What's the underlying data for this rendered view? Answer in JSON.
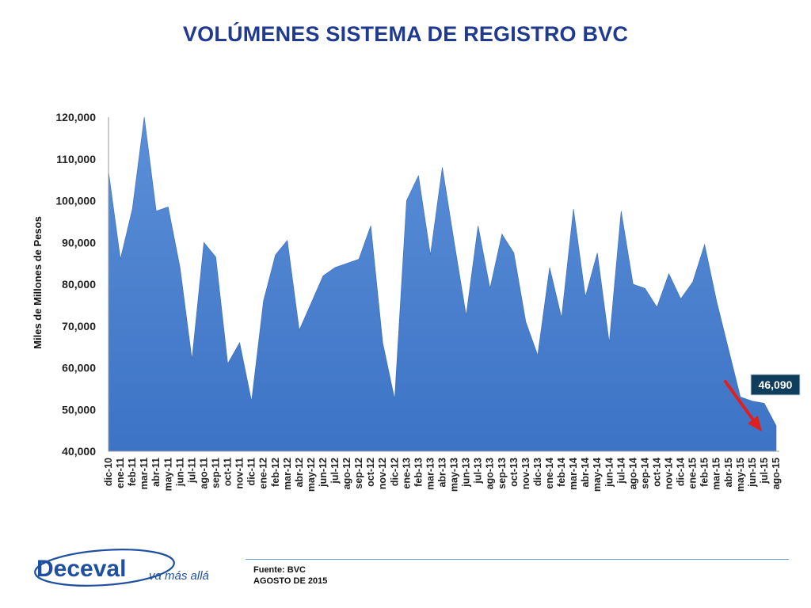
{
  "slide": {
    "title": "VOLÚMENES SISTEMA DE REGISTRO BVC",
    "source_line1": "Fuente: BVC",
    "source_line2": "AGOSTO DE 2015",
    "logo_text": "Deceval",
    "logo_tagline": "va más allá",
    "callout_value": "46,090"
  },
  "colors": {
    "title": "#1f3a8f",
    "area_fill_top": "#5b8fd8",
    "area_fill_bottom": "#3d73c5",
    "callout_bg": "#0f3d5c",
    "arrow": "#e02020",
    "brand": "#1f4fa0"
  },
  "chart_data": {
    "type": "area",
    "title": "VOLÚMENES SISTEMA DE REGISTRO BVC",
    "xlabel": "",
    "ylabel": "Miles de Millones de Pesos",
    "ylim": [
      40000,
      120000
    ],
    "yticks": [
      "40,000",
      "50,000",
      "60,000",
      "70,000",
      "80,000",
      "90,000",
      "100,000",
      "110,000",
      "120,000"
    ],
    "grid": false,
    "legend": "none",
    "categories": [
      "dic-10",
      "ene-11",
      "feb-11",
      "mar-11",
      "abr-11",
      "may-11",
      "jun-11",
      "jul-11",
      "ago-11",
      "sep-11",
      "oct-11",
      "nov-11",
      "dic-11",
      "ene-12",
      "feb-12",
      "mar-12",
      "abr-12",
      "may-12",
      "jun-12",
      "jul-12",
      "ago-12",
      "sep-12",
      "oct-12",
      "nov-12",
      "dic-12",
      "ene-13",
      "feb-13",
      "mar-13",
      "abr-13",
      "may-13",
      "jun-13",
      "jul-13",
      "ago-13",
      "sep-13",
      "oct-13",
      "nov-13",
      "dic-13",
      "ene-14",
      "feb-14",
      "mar-14",
      "abr-14",
      "may-14",
      "jun-14",
      "jul-14",
      "ago-14",
      "sep-14",
      "oct-14",
      "nov-14",
      "dic-14",
      "ene-15",
      "feb-15",
      "mar-15",
      "abr-15",
      "may-15",
      "jun-15",
      "jul-15",
      "ago-15"
    ],
    "series": [
      {
        "values": [
          107000,
          86000,
          98000,
          120000,
          97500,
          98500,
          84000,
          62000,
          90000,
          86500,
          61000,
          66000,
          52000,
          76000,
          87000,
          90500,
          69000,
          75500,
          82000,
          84000,
          85000,
          86000,
          94000,
          66000,
          52500,
          100000,
          106000,
          87000,
          108000,
          90000,
          72500,
          94000,
          79000,
          92000,
          87500,
          71000,
          63000,
          84000,
          72000,
          98000,
          77000,
          87500,
          66000,
          97500,
          80000,
          79000,
          74500,
          82500,
          76500,
          80500,
          89500,
          76000,
          64500,
          53000,
          52000,
          51500,
          46090
        ]
      }
    ],
    "annotations": [
      {
        "text": "46,090",
        "category": "ago-15"
      }
    ]
  }
}
